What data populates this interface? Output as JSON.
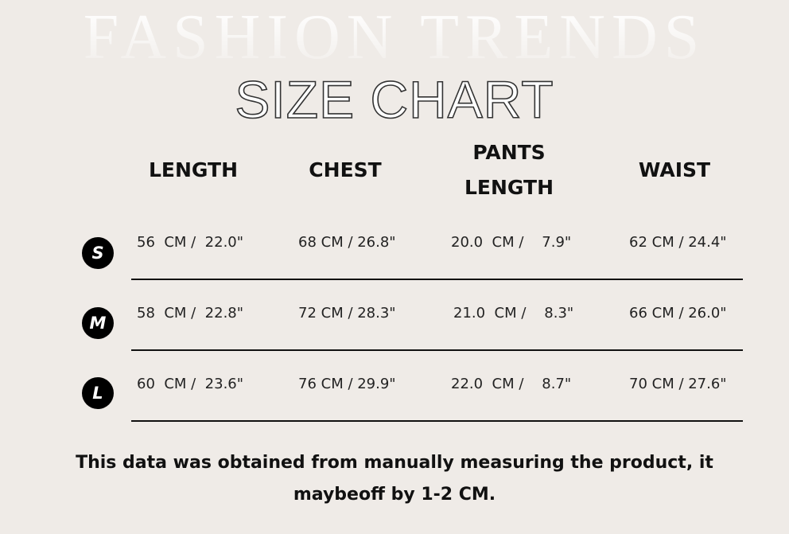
{
  "watermark": "FASHION TRENDS",
  "title": "SIZE CHART",
  "headers": [
    "LENGTH",
    "CHEST",
    "PANTS LENGTH",
    "WAIST"
  ],
  "rows": [
    {
      "size": "S",
      "cells": [
        "56  CM /  22.0\"",
        "68 CM / 26.8\"",
        "20.0  CM /    7.9\"",
        "62 CM / 24.4\""
      ]
    },
    {
      "size": "M",
      "cells": [
        "58  CM /  22.8\"",
        "72 CM / 28.3\"",
        "21.0  CM /    8.3\"",
        "66 CM / 26.0\""
      ]
    },
    {
      "size": "L",
      "cells": [
        "60  CM /  23.6\"",
        "76 CM / 29.9\"",
        "22.0  CM /    8.7\"",
        "70 CM / 27.6\""
      ]
    }
  ],
  "note": "This data was obtained from manually measuring the product, it maybeoff by 1-2 CM.",
  "colors": {
    "background": "#efebe7",
    "text": "#111111",
    "badge": "#000000"
  }
}
